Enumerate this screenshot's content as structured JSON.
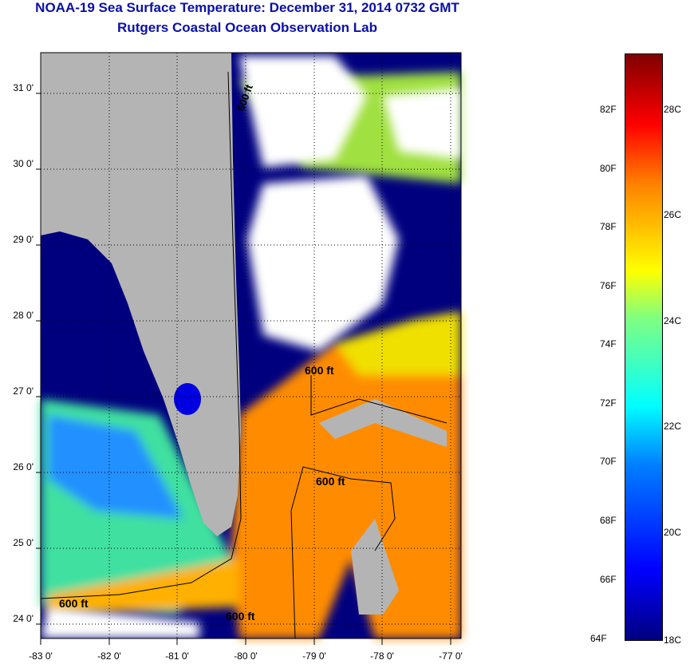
{
  "header": {
    "title": "NOAA-19 Sea Surface Temperature:  December 31, 2014 0732 GMT",
    "subtitle": "Rutgers Coastal Ocean Observation Lab"
  },
  "map": {
    "lat_labels": [
      "31 0'",
      "30 0'",
      "29 0'",
      "28 0'",
      "27 0'",
      "26 0'",
      "25 0'",
      "24 0'"
    ],
    "lon_labels": [
      "-83 0'",
      "-82 0'",
      "-81 0'",
      "-80 0'",
      "-79 0'",
      "-78 0'",
      "-77 0'"
    ],
    "contour_labels": [
      "600 ft",
      "600 ft",
      "600 ft",
      "600 ft",
      "600 ft"
    ],
    "colors": {
      "land": "#b4b4b4",
      "cloud": "#ffffff",
      "cold": "#00007f",
      "warm": "#ff8c00"
    }
  },
  "colorbar": {
    "fahrenheit": [
      "82F",
      "80F",
      "78F",
      "76F",
      "74F",
      "72F",
      "70F",
      "68F",
      "66F",
      "64F"
    ],
    "celsius": [
      "28C",
      "26C",
      "24C",
      "22C",
      "20C",
      "18C"
    ]
  }
}
